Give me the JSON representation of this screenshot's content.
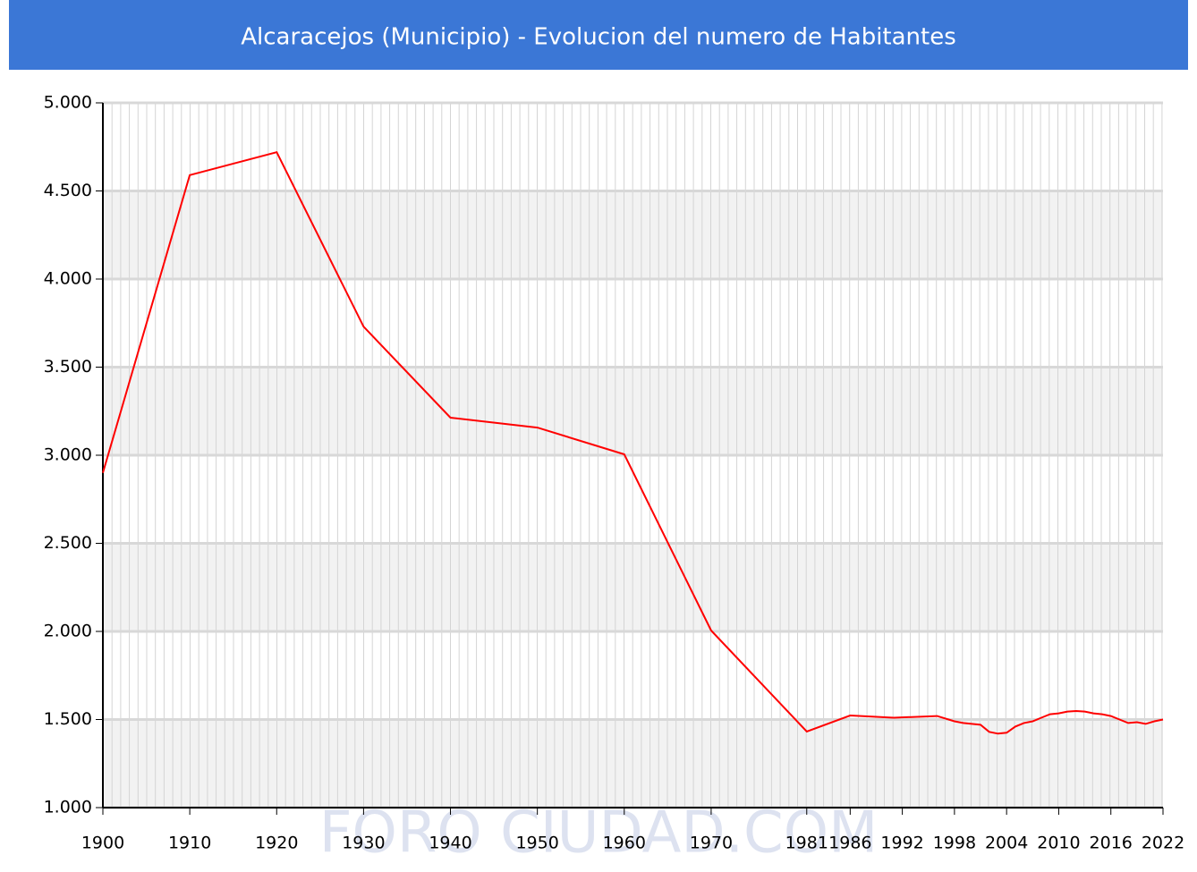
{
  "chart_data": {
    "type": "line",
    "title": "Alcaracejos (Municipio) - Evolucion del numero de Habitantes",
    "watermark": "FORO CIUDAD.COM",
    "x": [
      1900,
      1910,
      1920,
      1930,
      1940,
      1950,
      1960,
      1970,
      1981,
      1986,
      1991,
      1996,
      1998,
      1999,
      2000,
      2001,
      2002,
      2003,
      2004,
      2005,
      2006,
      2007,
      2008,
      2009,
      2010,
      2011,
      2012,
      2013,
      2014,
      2015,
      2016,
      2017,
      2018,
      2019,
      2020,
      2021,
      2022
    ],
    "series": [
      {
        "name": "Habitantes",
        "color": "#ff0000",
        "values": [
          2900,
          4590,
          4720,
          3730,
          3213,
          3157,
          3005,
          2005,
          1432,
          1523,
          1510,
          1520,
          1490,
          1480,
          1475,
          1470,
          1430,
          1420,
          1425,
          1460,
          1480,
          1490,
          1510,
          1530,
          1535,
          1545,
          1548,
          1545,
          1535,
          1530,
          1520,
          1500,
          1480,
          1485,
          1475,
          1490,
          1500
        ]
      }
    ],
    "xlim": [
      1900,
      2022
    ],
    "xticks": [
      1900,
      1910,
      1920,
      1930,
      1940,
      1950,
      1960,
      1970,
      1981,
      1986,
      1992,
      1998,
      2004,
      2010,
      2016,
      2022
    ],
    "ylim": [
      1000,
      5000
    ],
    "yticks": [
      {
        "value": 1000,
        "label": "1.000"
      },
      {
        "value": 1500,
        "label": "1.500"
      },
      {
        "value": 2000,
        "label": "2.000"
      },
      {
        "value": 2500,
        "label": "2.500"
      },
      {
        "value": 3000,
        "label": "3.000"
      },
      {
        "value": 3500,
        "label": "3.500"
      },
      {
        "value": 4000,
        "label": "4.000"
      },
      {
        "value": 4500,
        "label": "4.500"
      },
      {
        "value": 5000,
        "label": "5.000"
      }
    ],
    "grid": true
  }
}
